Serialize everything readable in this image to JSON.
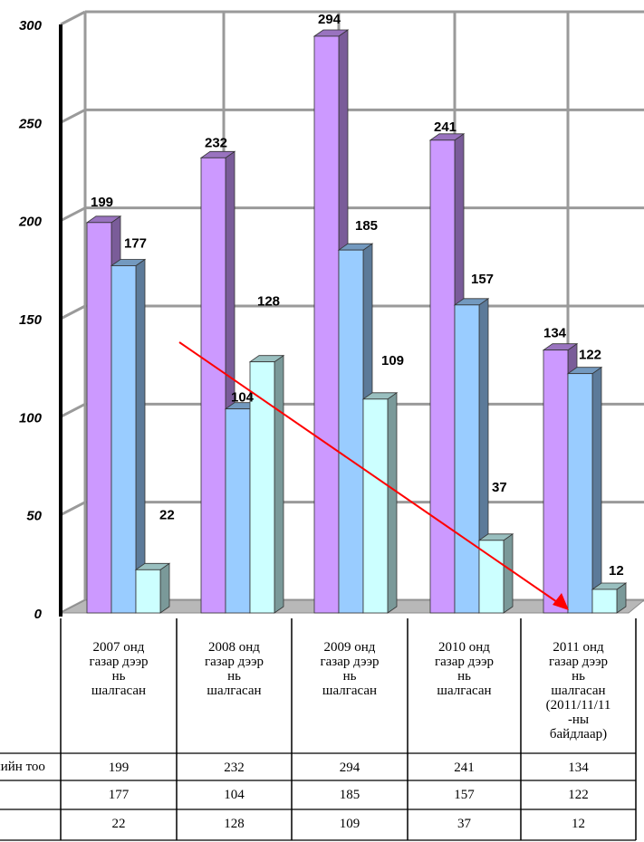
{
  "chart_data": {
    "type": "bar",
    "categories": [
      [
        "2007 онд",
        "газар дээр",
        "нь",
        "шалгасан"
      ],
      [
        "2008 онд",
        "газар дээр",
        "нь",
        "шалгасан"
      ],
      [
        "2009 онд",
        "газар дээр",
        "нь",
        "шалгасан"
      ],
      [
        "2010 онд",
        "газар дээр",
        "нь",
        "шалгасан"
      ],
      [
        "2011 онд",
        "газар дээр",
        "нь",
        "шалгасан",
        "(2011/11/11",
        "-ны",
        "байдлаар)"
      ]
    ],
    "series": [
      {
        "name": "...лийн тоо",
        "values": [
          199,
          232,
          294,
          241,
          134
        ],
        "color": "#cc99ff"
      },
      {
        "name": "",
        "values": [
          177,
          104,
          185,
          157,
          122
        ],
        "color": "#99ccff"
      },
      {
        "name": "",
        "values": [
          22,
          128,
          109,
          37,
          12
        ],
        "color": "#ccffff"
      }
    ],
    "ylim": [
      0,
      300
    ],
    "yticks": [
      0,
      50,
      100,
      150,
      200,
      250,
      300
    ],
    "grid": true,
    "trend_arrow_color": "#ff0000",
    "table_values": [
      [
        "199",
        "232",
        "294",
        "241",
        "134"
      ],
      [
        "177",
        "104",
        "185",
        "157",
        "122"
      ],
      [
        "22",
        "128",
        "109",
        "37",
        "12"
      ]
    ]
  }
}
